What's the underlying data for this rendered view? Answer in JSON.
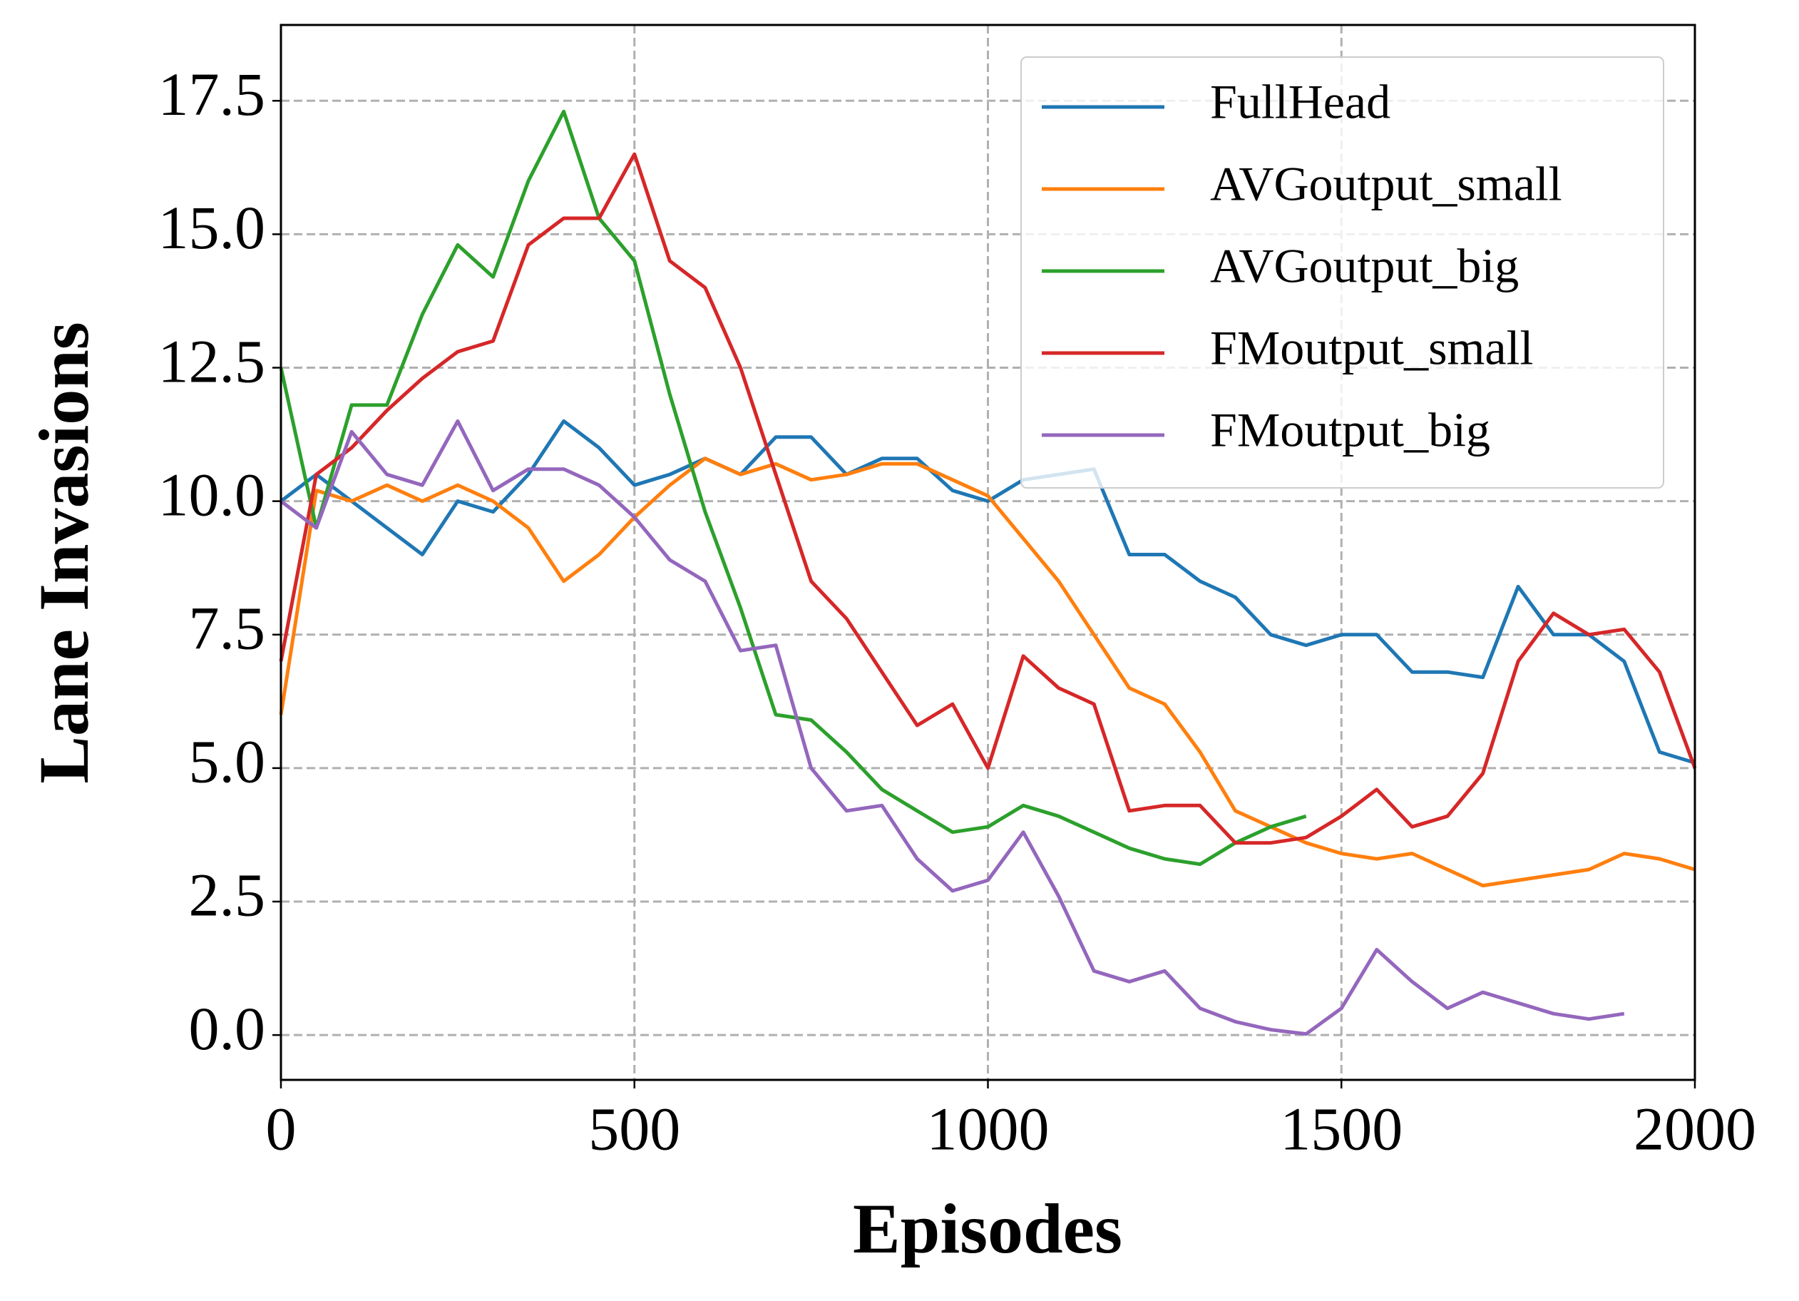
{
  "chart_data": {
    "type": "line",
    "xlabel": "Episodes",
    "ylabel": "Lane Invasions",
    "x": [
      0,
      50,
      100,
      150,
      200,
      250,
      300,
      350,
      400,
      450,
      500,
      550,
      600,
      650,
      700,
      750,
      800,
      850,
      900,
      950,
      1000,
      1050,
      1100,
      1150,
      1200,
      1250,
      1300,
      1350,
      1400,
      1450,
      1500,
      1550,
      1600,
      1650,
      1700,
      1750,
      1800,
      1850,
      1900,
      1950,
      2000
    ],
    "series": [
      {
        "name": "FullHead",
        "color": "#1f77b4",
        "values": [
          10,
          10.5,
          10,
          9.5,
          9,
          10,
          9.8,
          10.5,
          11.5,
          11,
          10.3,
          10.5,
          10.8,
          10.5,
          11.2,
          11.2,
          10.5,
          10.8,
          10.8,
          10.2,
          10,
          10.4,
          10.5,
          10.6,
          9,
          9,
          8.5,
          8.2,
          7.5,
          7.3,
          7.5,
          7.5,
          6.8,
          6.8,
          6.7,
          8.4,
          7.5,
          7.5,
          7,
          5.3,
          5.1
        ]
      },
      {
        "name": "AVGoutput_small",
        "color": "#ff7f0e",
        "values": [
          6,
          10.2,
          10,
          10.3,
          10,
          10.3,
          10,
          9.5,
          8.5,
          9,
          9.7,
          10.3,
          10.8,
          10.5,
          10.7,
          10.4,
          10.5,
          10.7,
          10.7,
          10.4,
          10.1,
          9.3,
          8.5,
          7.5,
          6.5,
          6.2,
          5.3,
          4.2,
          3.9,
          3.6,
          3.4,
          3.3,
          3.4,
          3.1,
          2.8,
          2.9,
          3,
          3.1,
          3.4,
          3.3,
          3.1
        ]
      },
      {
        "name": "AVGoutput_big",
        "color": "#2ca02c",
        "values": [
          12.5,
          9.5,
          11.8,
          11.8,
          13.5,
          14.8,
          14.2,
          16,
          17.3,
          15.3,
          14.5,
          12,
          9.8,
          8,
          6,
          5.9,
          5.3,
          4.6,
          4.2,
          3.8,
          3.9,
          4.3,
          4.1,
          3.8,
          3.5,
          3.3,
          3.2,
          3.6,
          3.9,
          4.1,
          null,
          null,
          null,
          null,
          null,
          null,
          null,
          null,
          null,
          null,
          null
        ]
      },
      {
        "name": "FMoutput_small",
        "color": "#d62728",
        "values": [
          7,
          10.5,
          11,
          11.7,
          12.3,
          12.8,
          13,
          14.8,
          15.3,
          15.3,
          16.5,
          14.5,
          14,
          12.5,
          10.5,
          8.5,
          7.8,
          6.8,
          5.8,
          6.2,
          5,
          7.1,
          6.5,
          6.2,
          4.2,
          4.3,
          4.3,
          3.6,
          3.6,
          3.7,
          4.1,
          4.6,
          3.9,
          4.1,
          4.9,
          7,
          7.9,
          7.5,
          7.6,
          6.8,
          5
        ]
      },
      {
        "name": "FMoutput_big",
        "color": "#9467bd",
        "values": [
          10,
          9.5,
          11.3,
          10.5,
          10.3,
          11.5,
          10.2,
          10.6,
          10.6,
          10.3,
          9.7,
          8.9,
          8.5,
          7.2,
          7.3,
          5,
          4.2,
          4.3,
          3.3,
          2.7,
          2.9,
          3.8,
          2.6,
          1.2,
          1,
          1.2,
          0.5,
          0.25,
          0.1,
          0.02,
          0.5,
          1.6,
          1,
          0.5,
          0.8,
          0.6,
          0.4,
          0.3,
          0.4,
          null,
          null
        ]
      }
    ],
    "xlim": [
      0,
      2000
    ],
    "xticks": [
      0,
      500,
      1000,
      1500,
      2000
    ],
    "ylim": [
      -0.84,
      18.92
    ],
    "yticks": [
      {
        "value": 0,
        "label": "0.0"
      },
      2.5,
      {
        "value": 5,
        "label": "5.0"
      },
      7.5,
      {
        "value": 10,
        "label": "10.0"
      },
      12.5,
      {
        "value": 15,
        "label": "15.0"
      },
      17.5
    ],
    "grid": true,
    "legend": "upper right"
  }
}
